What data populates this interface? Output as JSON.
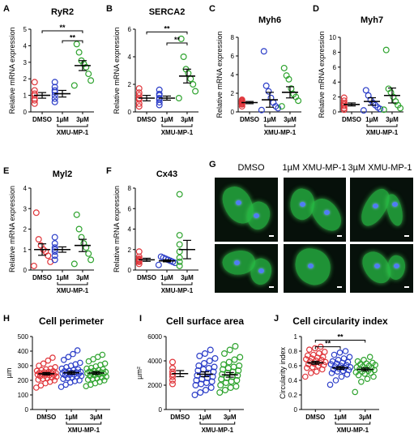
{
  "palette": {
    "DMSO": "#e0353a",
    "1uM": "#2c3ec8",
    "3uM": "#2ea32e"
  },
  "group_footer": "XMU-MP-1",
  "panel_g": {
    "letter": "G",
    "titles": [
      "DMSO",
      "1µM XMU-MP-1",
      "3µM XMU-MP-1"
    ]
  },
  "chart_data": [
    {
      "id": "A",
      "letter": "A",
      "type": "scatter",
      "title": "RyR2",
      "ylabel": "Relative mRNA expression",
      "categories": [
        "DMSO",
        "1µM",
        "3µM"
      ],
      "ylim": [
        0,
        5
      ],
      "yticks": [
        0,
        1,
        2,
        3,
        4,
        5
      ],
      "points": [
        [
          0.5,
          0.7,
          0.8,
          1.0,
          1.1,
          1.3,
          1.8
        ],
        [
          0.6,
          0.8,
          1.0,
          1.2,
          1.3,
          1.5,
          1.8
        ],
        [
          1.6,
          1.9,
          2.3,
          2.7,
          2.9,
          3.1,
          3.6,
          4.1
        ]
      ],
      "means": [
        1.0,
        1.1,
        2.8
      ],
      "sem": [
        0.17,
        0.2,
        0.3
      ],
      "sig": [
        {
          "from": 0,
          "to": 2,
          "label": "**",
          "y": 4.9
        },
        {
          "from": 1,
          "to": 2,
          "label": "**",
          "y": 4.3
        }
      ]
    },
    {
      "id": "B",
      "letter": "B",
      "type": "scatter",
      "title": "SERCA2",
      "ylabel": "Relative mRNA expression",
      "categories": [
        "DMSO",
        "1µM",
        "3µM"
      ],
      "ylim": [
        0,
        6
      ],
      "yticks": [
        0,
        2,
        4,
        6
      ],
      "points": [
        [
          0.4,
          0.6,
          0.9,
          1.0,
          1.2,
          1.4,
          1.7
        ],
        [
          0.5,
          0.7,
          0.9,
          1.0,
          1.2,
          1.3,
          1.6
        ],
        [
          1.0,
          1.5,
          2.0,
          2.4,
          2.8,
          3.1,
          4.0,
          5.3
        ]
      ],
      "means": [
        1.0,
        1.0,
        2.6
      ],
      "sem": [
        0.2,
        0.15,
        0.5
      ],
      "sig": [
        {
          "from": 0,
          "to": 2,
          "label": "**",
          "y": 5.8
        },
        {
          "from": 1,
          "to": 2,
          "label": "**",
          "y": 5.0
        }
      ]
    },
    {
      "id": "C",
      "letter": "C",
      "type": "scatter",
      "title": "Myh6",
      "ylabel": "Relative mRNA expression",
      "categories": [
        "DMSO",
        "1µM",
        "3µM"
      ],
      "ylim": [
        0,
        8
      ],
      "yticks": [
        0,
        2,
        4,
        6,
        8
      ],
      "points": [
        [
          0.6,
          0.8,
          0.9,
          1.0,
          1.1,
          1.2,
          1.3
        ],
        [
          0.2,
          0.4,
          0.6,
          1.0,
          1.5,
          2.2,
          2.8,
          6.5
        ],
        [
          0.6,
          1.2,
          1.6,
          1.9,
          2.5,
          3.5,
          3.9,
          4.7
        ]
      ],
      "means": [
        1.0,
        1.3,
        2.1
      ],
      "sem": [
        0.12,
        0.8,
        0.6
      ],
      "sig": []
    },
    {
      "id": "D",
      "letter": "D",
      "type": "scatter",
      "title": "Myh7",
      "ylabel": "Relative mRNA expression",
      "categories": [
        "DMSO",
        "1µM",
        "3µM"
      ],
      "ylim": [
        0,
        10
      ],
      "yticks": [
        0,
        2,
        4,
        6,
        8,
        10
      ],
      "points": [
        [
          0.3,
          0.5,
          0.8,
          1.0,
          1.2,
          1.5,
          1.9
        ],
        [
          0.2,
          0.4,
          0.6,
          0.9,
          1.2,
          1.6,
          2.2,
          2.9
        ],
        [
          0.3,
          0.5,
          0.9,
          1.4,
          2.0,
          2.6,
          3.1,
          8.3
        ]
      ],
      "means": [
        1.0,
        1.4,
        2.2
      ],
      "sem": [
        0.2,
        0.5,
        1.0
      ],
      "sig": []
    },
    {
      "id": "E",
      "letter": "E",
      "type": "scatter",
      "title": "Myl2",
      "ylabel": "Relative mRNA expression",
      "categories": [
        "DMSO",
        "1µM",
        "3µM"
      ],
      "ylim": [
        0,
        4
      ],
      "yticks": [
        0,
        1,
        2,
        3,
        4
      ],
      "points": [
        [
          0.2,
          0.4,
          0.7,
          0.9,
          1.0,
          1.2,
          1.5,
          2.8
        ],
        [
          0.5,
          0.7,
          0.9,
          1.0,
          1.1,
          1.3,
          1.6
        ],
        [
          0.3,
          0.5,
          0.8,
          1.1,
          1.3,
          1.6,
          2.0,
          2.7
        ]
      ],
      "means": [
        1.0,
        1.0,
        1.2
      ],
      "sem": [
        0.28,
        0.13,
        0.3
      ],
      "sig": []
    },
    {
      "id": "F",
      "letter": "F",
      "type": "scatter",
      "title": "Cx43",
      "ylabel": "Relative mRNA expression",
      "categories": [
        "DMSO",
        "1µM",
        "3µM"
      ],
      "ylim": [
        0,
        8
      ],
      "yticks": [
        0,
        2,
        4,
        6,
        8
      ],
      "points": [
        [
          0.6,
          0.8,
          0.9,
          1.0,
          1.1,
          1.3,
          1.8
        ],
        [
          0.5,
          0.7,
          0.8,
          0.9,
          1.0,
          1.1,
          1.2,
          1.3
        ],
        [
          0.4,
          0.8,
          1.2,
          1.8,
          2.5,
          3.4,
          7.4
        ]
      ],
      "means": [
        1.0,
        0.9,
        2.0
      ],
      "sem": [
        0.15,
        0.1,
        0.9
      ],
      "sig": []
    },
    {
      "id": "H",
      "letter": "H",
      "type": "scatter",
      "title": "Cell perimeter",
      "ylabel": "µm",
      "categories": [
        "DMSO",
        "1µM",
        "3µM"
      ],
      "ylim": [
        0,
        500
      ],
      "yticks": [
        0,
        100,
        200,
        300,
        400,
        500
      ],
      "points": [
        [
          150,
          165,
          180,
          190,
          200,
          205,
          210,
          215,
          220,
          225,
          228,
          232,
          235,
          238,
          240,
          242,
          245,
          248,
          250,
          252,
          255,
          258,
          262,
          265,
          270,
          275,
          280,
          290,
          300,
          315,
          335,
          355
        ],
        [
          155,
          170,
          185,
          195,
          200,
          210,
          215,
          220,
          225,
          230,
          235,
          238,
          240,
          245,
          248,
          250,
          252,
          255,
          258,
          262,
          265,
          270,
          275,
          280,
          290,
          300,
          310,
          320,
          340,
          360,
          380,
          405
        ],
        [
          160,
          170,
          180,
          190,
          200,
          205,
          210,
          215,
          220,
          225,
          230,
          235,
          240,
          245,
          248,
          250,
          252,
          255,
          258,
          260,
          265,
          270,
          275,
          280,
          285,
          295,
          305,
          315,
          330,
          345,
          360,
          375
        ]
      ],
      "means": [
        245,
        252,
        250
      ],
      "sem": [
        8,
        10,
        9
      ],
      "sig": []
    },
    {
      "id": "I",
      "letter": "I",
      "type": "scatter",
      "title": "Cell surface area",
      "ylabel": "µm²",
      "categories": [
        "DMSO",
        "1µM",
        "3µM"
      ],
      "ylim": [
        0,
        6000
      ],
      "yticks": [
        0,
        2000,
        4000,
        6000
      ],
      "points": [
        [
          2100,
          2400,
          2700,
          2900,
          3100,
          3400,
          3900
        ],
        [
          1200,
          1400,
          1600,
          1800,
          2000,
          2100,
          2200,
          2300,
          2400,
          2500,
          2600,
          2700,
          2800,
          2900,
          3000,
          3100,
          3200,
          3300,
          3400,
          3500,
          3600,
          3800,
          4000,
          4200,
          4400,
          4600,
          4900
        ],
        [
          1400,
          1600,
          1800,
          1900,
          2000,
          2200,
          2300,
          2400,
          2500,
          2600,
          2700,
          2800,
          2900,
          3000,
          3100,
          3200,
          3300,
          3400,
          3500,
          3600,
          3700,
          3900,
          4100,
          4300,
          4600,
          4900,
          5200
        ]
      ],
      "means": [
        2950,
        2900,
        2850
      ],
      "sem": [
        250,
        200,
        190
      ],
      "sig": []
    },
    {
      "id": "J",
      "letter": "J",
      "type": "scatter",
      "title": "Cell circularity index",
      "ylabel": "Circularity index",
      "categories": [
        "DMSO",
        "1µM",
        "3µM"
      ],
      "ylim": [
        0,
        1.0
      ],
      "yticks": [
        0,
        0.2,
        0.4,
        0.6,
        0.8,
        1.0
      ],
      "points": [
        [
          0.45,
          0.5,
          0.52,
          0.55,
          0.57,
          0.58,
          0.6,
          0.61,
          0.62,
          0.63,
          0.64,
          0.65,
          0.66,
          0.67,
          0.68,
          0.69,
          0.7,
          0.71,
          0.72,
          0.74,
          0.75,
          0.77,
          0.79,
          0.82,
          0.84,
          0.86
        ],
        [
          0.34,
          0.4,
          0.45,
          0.48,
          0.5,
          0.52,
          0.53,
          0.54,
          0.55,
          0.56,
          0.57,
          0.58,
          0.59,
          0.6,
          0.61,
          0.62,
          0.63,
          0.64,
          0.65,
          0.66,
          0.68,
          0.7,
          0.72,
          0.75,
          0.78,
          0.8
        ],
        [
          0.24,
          0.38,
          0.42,
          0.45,
          0.47,
          0.49,
          0.5,
          0.51,
          0.52,
          0.53,
          0.54,
          0.55,
          0.56,
          0.57,
          0.58,
          0.59,
          0.6,
          0.61,
          0.62,
          0.63,
          0.64,
          0.66,
          0.68,
          0.72
        ]
      ],
      "means": [
        0.64,
        0.57,
        0.55
      ],
      "sem": [
        0.02,
        0.02,
        0.02
      ],
      "sig": [
        {
          "from": 0,
          "to": 1,
          "label": "**",
          "y": 0.86
        },
        {
          "from": 0,
          "to": 2,
          "label": "**",
          "y": 0.95
        }
      ]
    }
  ]
}
